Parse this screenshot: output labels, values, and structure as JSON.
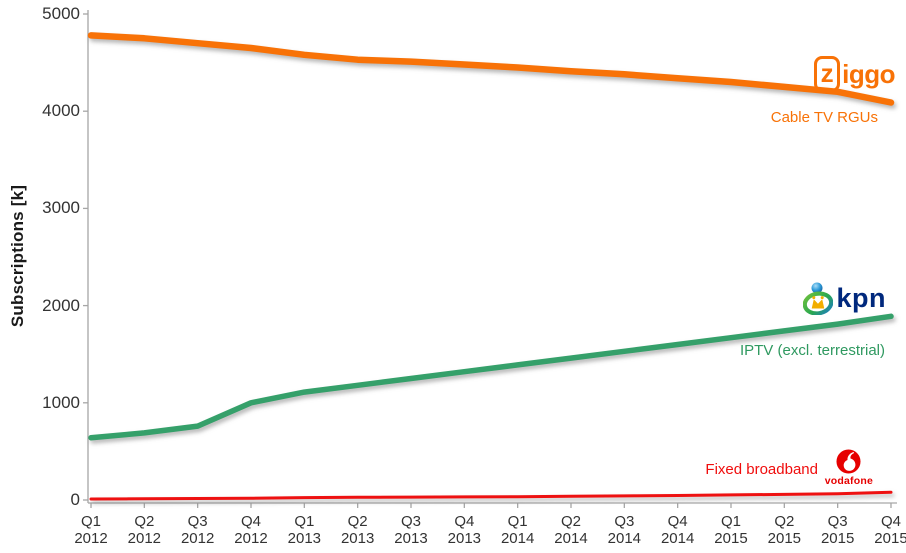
{
  "chart_data": {
    "type": "line",
    "title": "",
    "xlabel": "",
    "ylabel": "Subscriptions [k]",
    "ylim": [
      0,
      5000
    ],
    "yticks": [
      0,
      1000,
      2000,
      3000,
      4000,
      5000
    ],
    "grid": false,
    "legend_position": "inline-labels-right",
    "categories": [
      "Q1 2012",
      "Q2 2012",
      "Q3 2012",
      "Q4 2012",
      "Q1 2013",
      "Q2 2013",
      "Q3 2013",
      "Q4 2013",
      "Q1 2014",
      "Q2 2014",
      "Q3 2014",
      "Q4 2014",
      "Q1 2015",
      "Q2 2015",
      "Q3 2015",
      "Q4 2015"
    ],
    "series": [
      {
        "name": "Cable TV RGUs",
        "brand": "Ziggo",
        "color": "#f87207",
        "values": [
          4780,
          4750,
          4700,
          4650,
          4580,
          4530,
          4510,
          4480,
          4450,
          4410,
          4380,
          4340,
          4300,
          4250,
          4200,
          4090
        ]
      },
      {
        "name": "IPTV (excl. terrestrial)",
        "brand": "KPN",
        "color": "#35a06a",
        "values": [
          640,
          690,
          760,
          1000,
          1110,
          1180,
          1250,
          1320,
          1390,
          1460,
          1530,
          1600,
          1670,
          1740,
          1810,
          1890
        ]
      },
      {
        "name": "Fixed broadband",
        "brand": "Vodafone",
        "color": "#ee1111",
        "values": [
          10,
          12,
          15,
          18,
          25,
          28,
          30,
          32,
          34,
          38,
          42,
          46,
          52,
          58,
          65,
          80
        ]
      }
    ]
  },
  "logos": {
    "ziggo_z": "z",
    "ziggo_rest": "iggo",
    "kpn": "kpn",
    "vodafone": "vodafone"
  }
}
